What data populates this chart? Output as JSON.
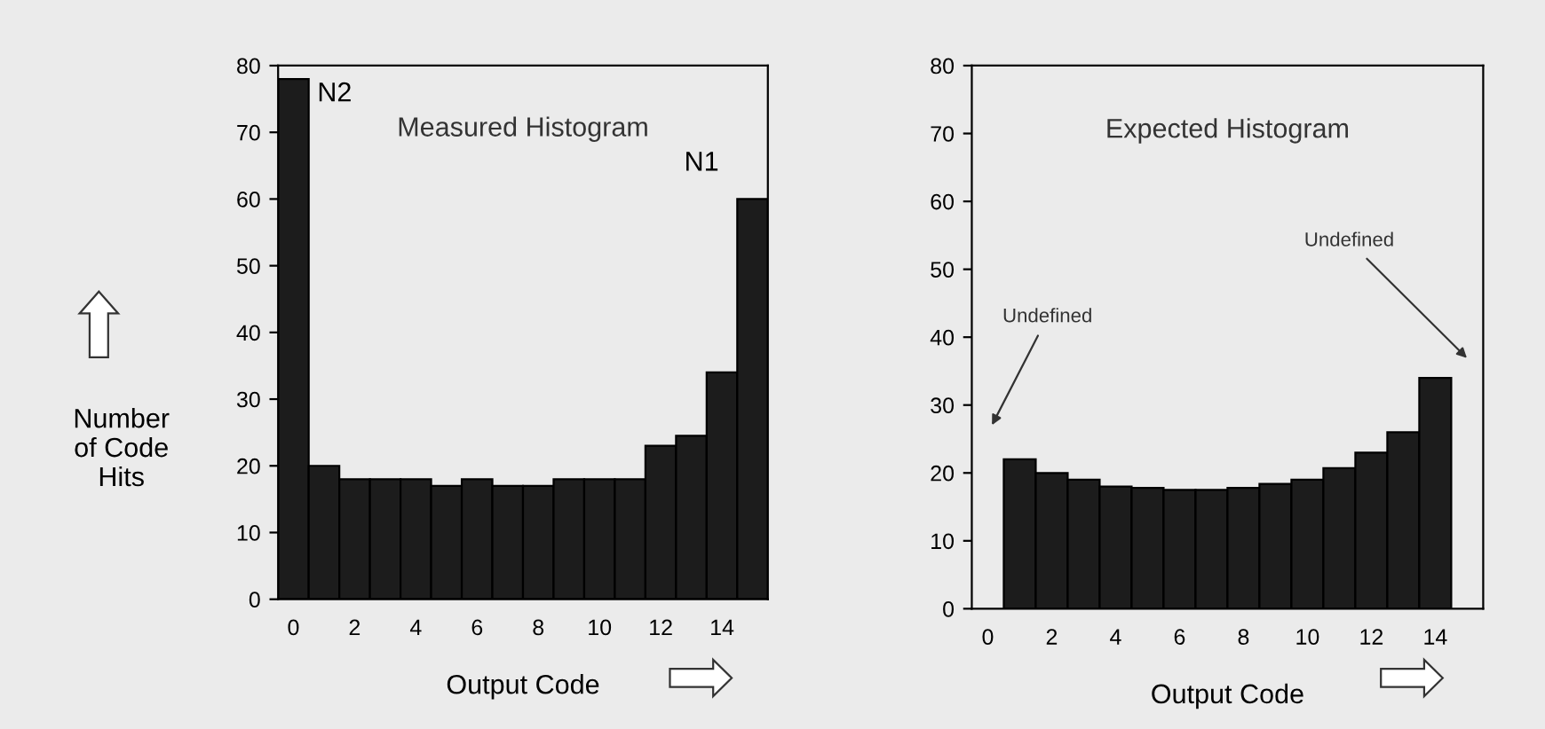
{
  "chart_data": [
    {
      "type": "bar",
      "title": "Measured Histogram",
      "xlabel": "Output Code",
      "ylabel": "Number\nof Code\nHits",
      "categories": [
        "0",
        null,
        "2",
        null,
        "4",
        null,
        "6",
        null,
        "8",
        null,
        "10",
        null,
        "12",
        null,
        "14",
        null
      ],
      "values": [
        78,
        20,
        18,
        18,
        18,
        17,
        18,
        17,
        17,
        18,
        18,
        18,
        23,
        24.5,
        34,
        60
      ],
      "color": "#1c1c1c",
      "ylim": [
        0,
        80
      ],
      "yticks": [
        0,
        10,
        20,
        30,
        40,
        50,
        60,
        70,
        80
      ],
      "annotations": [
        "N2",
        "N1"
      ]
    },
    {
      "type": "bar",
      "title": "Expected Histogram",
      "xlabel": "Output Code",
      "categories": [
        "0",
        null,
        "2",
        null,
        "4",
        null,
        "6",
        null,
        "8",
        null,
        "10",
        null,
        "12",
        null,
        "14",
        null
      ],
      "values": [
        null,
        22,
        20,
        19,
        18,
        17.8,
        17.5,
        17.5,
        17.8,
        18.4,
        19,
        20.7,
        23,
        26,
        34,
        null
      ],
      "color": "#1c1c1c",
      "ylim": [
        0,
        80
      ],
      "yticks": [
        0,
        10,
        20,
        30,
        40,
        50,
        60,
        70,
        80
      ],
      "annotations": [
        "Undefined",
        "Undefined"
      ]
    }
  ]
}
